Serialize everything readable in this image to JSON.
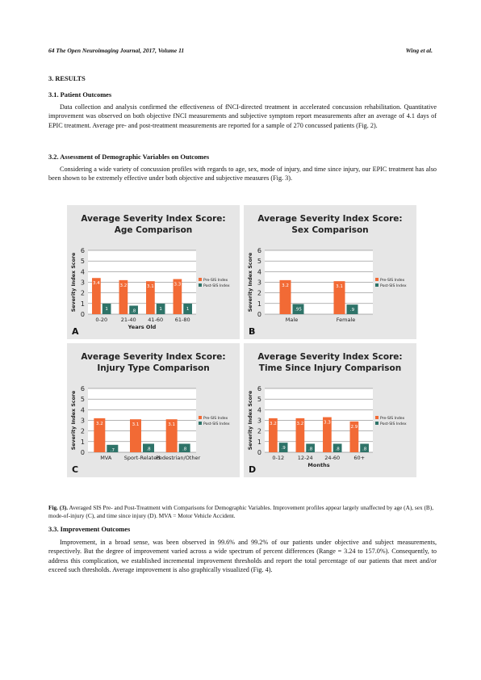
{
  "header": {
    "left": "64  The Open Neuroimaging Journal, 2017, Volume 11",
    "right": "Wing et al."
  },
  "sections": {
    "results_title": "3. RESULTS",
    "s31_title": "3.1. Patient Outcomes",
    "s31_text": "Data collection and analysis confirmed the effectiveness of fNCI-directed treatment in accelerated concussion rehabilitation. Quantitative improvement was observed on both objective fNCI measurements and subjective symptom report measurements after an average of 4.1 days of EPIC treatment. Average pre- and post-treatment measurements are reported for a sample of 270 concussed patients (Fig. 2).",
    "s32_title": "3.2. Assessment of Demographic Variables on Outcomes",
    "s32_text": "Considering a wide variety of concussion profiles with regards to age, sex, mode of injury, and time since injury, our EPIC treatment has also been shown to be extremely effective under both objective and subjective measures (Fig. 3).",
    "s33_title": "3.3. Improvement Outcomes",
    "s33_text": "Improvement, in a broad sense, was been observed in 99.6% and 99.2% of our patients under objective and subject measurements, respectively. But the degree of improvement varied across a wide spectrum of percent differences (Range = 3.24 to 157.0%). Consequently, to address this complication, we established incremental improvement thresholds and report the total percentage of our patients that meet and/or exceed such thresholds. Average improvement is also graphically visualized (Fig. 4)."
  },
  "caption": {
    "label": "Fig. (3).",
    "text": " Averaged SIS Pre- and Post-Treatment with Comparisons for Demographic Variables. Improvement profiles appear largely unaffected by age (A), sex (B), mode-of-injury (C), and time since injury (D). MVA = Motor Vehicle Accident."
  },
  "colors": {
    "pre": "#f26a35",
    "post": "#2e7368",
    "panel_bg": "#e6e6e6"
  },
  "chart_data": [
    {
      "panel": "A",
      "type": "bar",
      "title": [
        "Average Severity Index Score:",
        "Age Comparison"
      ],
      "ylabel": "Severity Index Score",
      "xlabel": "Years Old",
      "ylim": [
        0,
        6
      ],
      "yticks": [
        "0",
        "1",
        "2",
        "3",
        "4",
        "5",
        "6"
      ],
      "categories": [
        "0-20",
        "21-40",
        "41-60",
        "61-80"
      ],
      "legend": [
        "Pre-SIS Index",
        "Post-SIS Index"
      ],
      "legend_position": "right",
      "series": [
        {
          "name": "Pre-SIS Index",
          "values": [
            3.4,
            3.2,
            3.1,
            3.3
          ],
          "labels": [
            "3.4",
            "3.2",
            "3.1",
            "3.3"
          ]
        },
        {
          "name": "Post-SIS Index",
          "values": [
            1,
            0.8,
            1,
            1
          ],
          "labels": [
            "1",
            ".8",
            "1",
            "1"
          ]
        }
      ]
    },
    {
      "panel": "B",
      "type": "bar",
      "title": [
        "Average Severity Index Score:",
        "Sex Comparison"
      ],
      "ylabel": "Severity Index Score",
      "xlabel": "",
      "ylim": [
        0,
        6
      ],
      "yticks": [
        "0",
        "1",
        "2",
        "3",
        "4",
        "5",
        "6"
      ],
      "categories": [
        "Male",
        "Female"
      ],
      "legend": [
        "Pre-SIS Index",
        "Post-SIS Index"
      ],
      "legend_position": "right",
      "series": [
        {
          "name": "Pre-SIS Index",
          "values": [
            3.2,
            3.1
          ],
          "labels": [
            "3.2",
            "3.1"
          ]
        },
        {
          "name": "Post-SIS Index",
          "values": [
            0.95,
            0.9
          ],
          "labels": [
            ".95",
            ".9"
          ]
        }
      ]
    },
    {
      "panel": "C",
      "type": "bar",
      "title": [
        "Average Severity Index Score:",
        "Injury Type Comparison"
      ],
      "ylabel": "Severity Index Score",
      "xlabel": "",
      "ylim": [
        0,
        6
      ],
      "yticks": [
        "0",
        "1",
        "2",
        "3",
        "4",
        "5",
        "6"
      ],
      "categories": [
        "MVA",
        "Sport-Related",
        "Pedestrian/Other"
      ],
      "legend": [
        "Pre-SIS Index",
        "Post-SIS Index"
      ],
      "legend_position": "right",
      "series": [
        {
          "name": "Pre-SIS Index",
          "values": [
            3.2,
            3.1,
            3.1
          ],
          "labels": [
            "3.2",
            "3.1",
            "3.1"
          ]
        },
        {
          "name": "Post-SIS Index",
          "values": [
            0.7,
            0.8,
            0.8
          ],
          "labels": [
            ".7",
            ".8",
            ".8"
          ]
        }
      ]
    },
    {
      "panel": "D",
      "type": "bar",
      "title": [
        "Average Severity Index Score:",
        "Time Since Injury Comparison"
      ],
      "ylabel": "Severity Index Score",
      "xlabel": "Months",
      "ylim": [
        0,
        6
      ],
      "yticks": [
        "0",
        "1",
        "2",
        "3",
        "4",
        "5",
        "6"
      ],
      "categories": [
        "0-12",
        "12-24",
        "24-60",
        "60+"
      ],
      "legend": [
        "Pre-SIS Index",
        "Post-SIS Index"
      ],
      "legend_position": "right",
      "series": [
        {
          "name": "Pre-SIS Index",
          "values": [
            3.2,
            3.2,
            3.3,
            2.9
          ],
          "labels": [
            "3.2",
            "3.2",
            "3.3",
            "2.9"
          ]
        },
        {
          "name": "Post-SIS Index",
          "values": [
            0.9,
            0.8,
            0.8,
            0.8
          ],
          "labels": [
            ".9",
            ".8",
            ".8",
            ".8"
          ]
        }
      ]
    }
  ]
}
